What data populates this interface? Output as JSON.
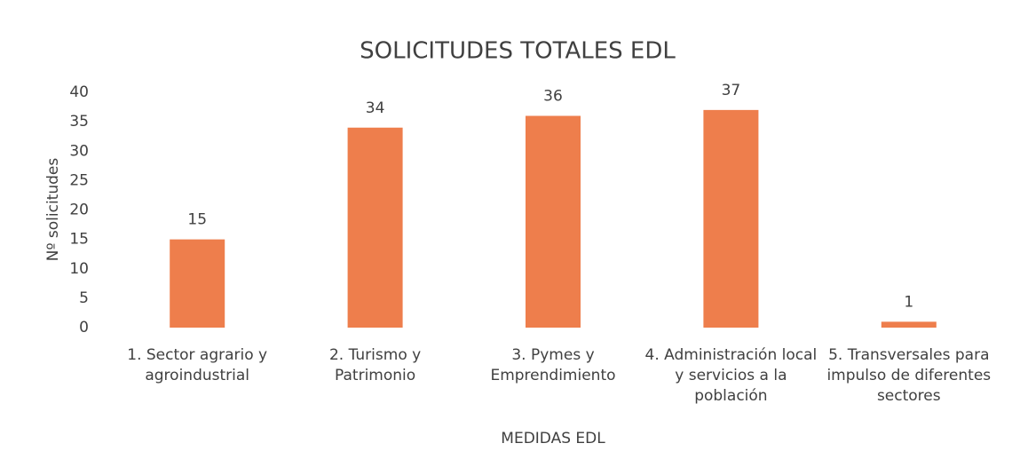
{
  "chart_data": {
    "type": "bar",
    "title": "SOLICITUDES TOTALES EDL",
    "x_label": "MEDIDAS EDL",
    "y_label": "Nº solicitudes",
    "categories": [
      "1. Sector agrario y agroindustrial",
      "2. Turismo y Patrimonio",
      "3. Pymes y Emprendimiento",
      "4. Administración local y servicios a la población",
      "5. Transversales para impulso de diferentes sectores"
    ],
    "values": [
      15,
      34,
      36,
      37,
      1
    ],
    "color": "#ee7e4c",
    "ylim": [
      0,
      40
    ],
    "yticks": [
      0,
      5,
      10,
      15,
      20,
      25,
      30,
      35,
      40
    ],
    "grid": false
  }
}
